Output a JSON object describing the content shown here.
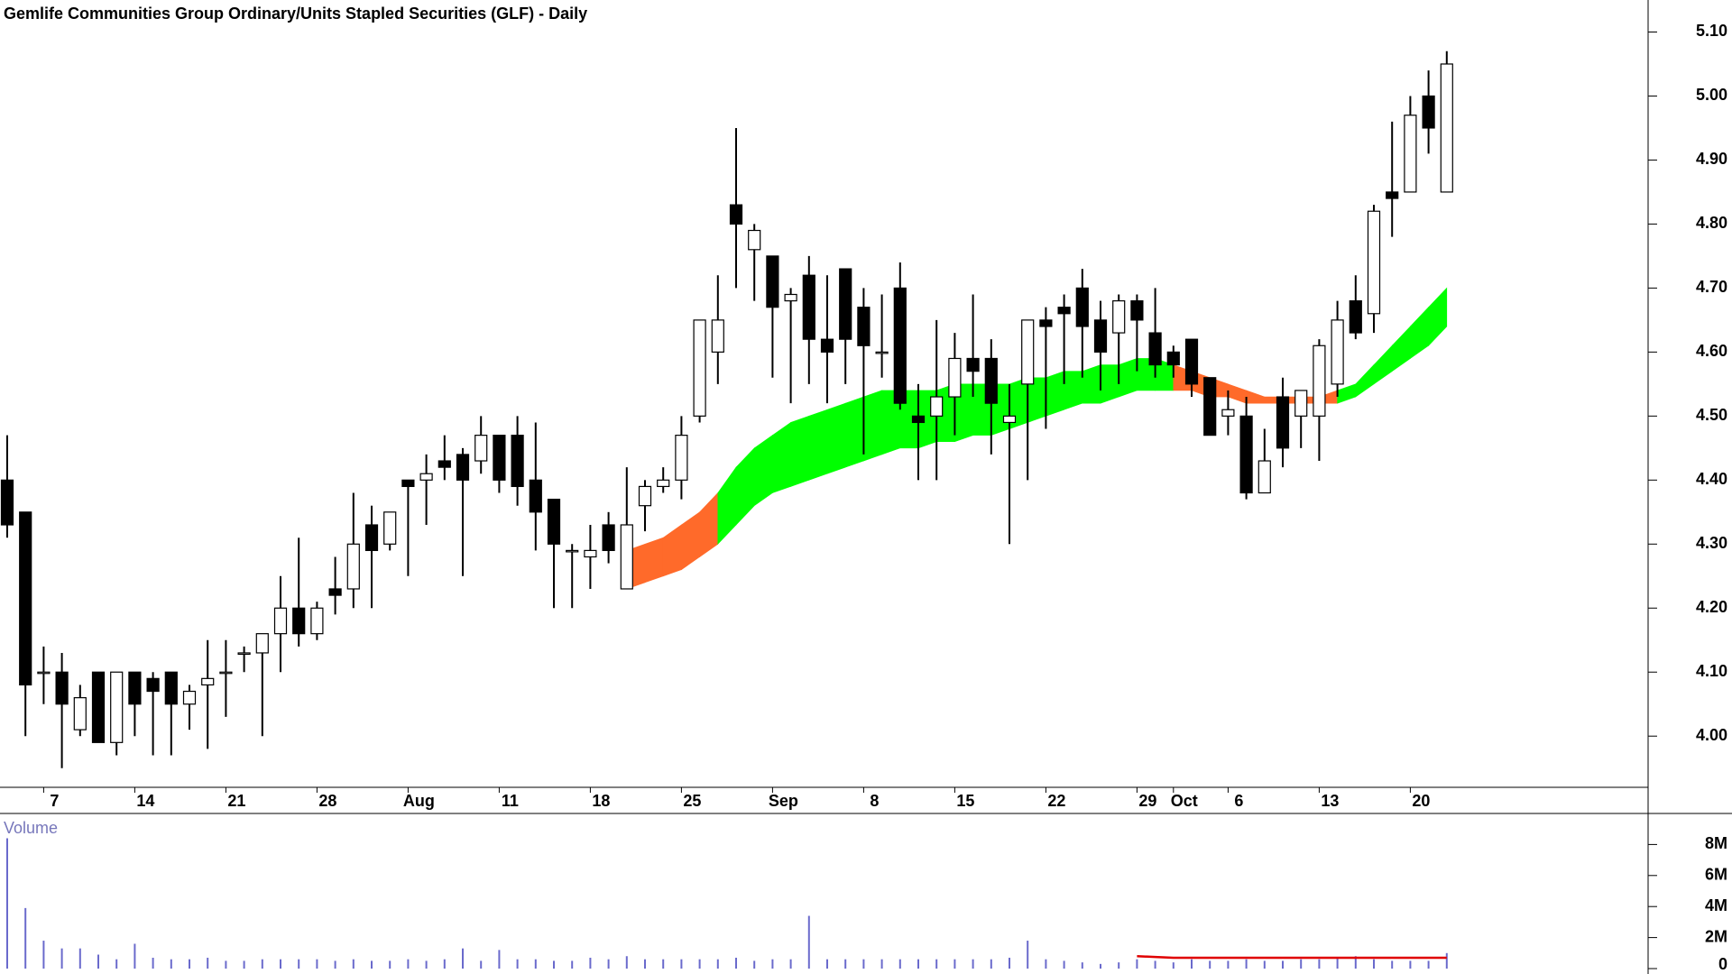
{
  "chart_data": {
    "type": "candlestick",
    "title": "Gemlife Communities Group Ordinary/Units Stapled Securities (GLF) - Daily",
    "categories": [
      null,
      null,
      "7",
      null,
      null,
      null,
      null,
      "14",
      null,
      null,
      null,
      null,
      "21",
      null,
      null,
      null,
      null,
      "28",
      null,
      null,
      null,
      null,
      "Aug",
      null,
      null,
      null,
      null,
      "11",
      null,
      null,
      null,
      null,
      "18",
      null,
      null,
      null,
      null,
      "25",
      null,
      null,
      null,
      null,
      "Sep",
      null,
      null,
      null,
      null,
      "8",
      null,
      null,
      null,
      null,
      "15",
      null,
      null,
      null,
      null,
      "22",
      null,
      null,
      null,
      null,
      "29",
      null,
      "Oct",
      null,
      null,
      "6",
      null,
      null,
      null,
      null,
      "13",
      null,
      null,
      null,
      null,
      "20",
      null,
      null
    ],
    "open": [
      4.4,
      4.35,
      4.1,
      4.1,
      4.01,
      4.1,
      3.99,
      4.1,
      4.09,
      4.1,
      4.05,
      4.08,
      4.1,
      4.13,
      4.13,
      4.16,
      4.2,
      4.16,
      4.23,
      4.23,
      4.33,
      4.3,
      4.4,
      4.4,
      4.43,
      4.44,
      4.43,
      4.47,
      4.47,
      4.4,
      4.37,
      4.29,
      4.28,
      4.33,
      4.23,
      4.36,
      4.39,
      4.4,
      4.5,
      4.6,
      4.83,
      4.76,
      4.75,
      4.68,
      4.72,
      4.62,
      4.73,
      4.67,
      4.6,
      4.7,
      4.5,
      4.5,
      4.53,
      4.59,
      4.59,
      4.49,
      4.55,
      4.65,
      4.67,
      4.7,
      4.65,
      4.63,
      4.68,
      4.63,
      4.6,
      4.62,
      4.56,
      4.5,
      4.5,
      4.38,
      4.53,
      4.5,
      4.5,
      4.55,
      4.68,
      4.66,
      4.85,
      4.85,
      5.0,
      4.85
    ],
    "high": [
      4.47,
      4.35,
      4.14,
      4.13,
      4.08,
      4.1,
      4.1,
      4.1,
      4.1,
      4.1,
      4.08,
      4.15,
      4.15,
      4.14,
      4.16,
      4.25,
      4.31,
      4.21,
      4.28,
      4.38,
      4.36,
      4.35,
      4.4,
      4.44,
      4.47,
      4.45,
      4.5,
      4.47,
      4.5,
      4.49,
      4.37,
      4.3,
      4.33,
      4.35,
      4.42,
      4.4,
      4.42,
      4.5,
      4.65,
      4.72,
      4.95,
      4.8,
      4.75,
      4.7,
      4.75,
      4.72,
      4.73,
      4.7,
      4.69,
      4.74,
      4.55,
      4.65,
      4.63,
      4.69,
      4.62,
      4.55,
      4.65,
      4.67,
      4.69,
      4.73,
      4.68,
      4.69,
      4.69,
      4.7,
      4.61,
      4.62,
      4.56,
      4.54,
      4.53,
      4.48,
      4.56,
      4.54,
      4.62,
      4.68,
      4.72,
      4.83,
      4.96,
      5.0,
      5.04,
      5.07
    ],
    "low": [
      4.31,
      4.0,
      4.05,
      3.95,
      4.0,
      3.99,
      3.97,
      4.0,
      3.97,
      3.97,
      4.01,
      3.98,
      4.03,
      4.1,
      4.0,
      4.1,
      4.14,
      4.15,
      4.19,
      4.2,
      4.2,
      4.29,
      4.25,
      4.33,
      4.4,
      4.25,
      4.41,
      4.38,
      4.36,
      4.29,
      4.2,
      4.2,
      4.23,
      4.27,
      4.23,
      4.32,
      4.38,
      4.37,
      4.49,
      4.55,
      4.7,
      4.68,
      4.56,
      4.52,
      4.55,
      4.52,
      4.55,
      4.44,
      4.56,
      4.51,
      4.4,
      4.4,
      4.47,
      4.53,
      4.44,
      4.3,
      4.4,
      4.48,
      4.55,
      4.56,
      4.54,
      4.55,
      4.57,
      4.56,
      4.56,
      4.53,
      4.47,
      4.47,
      4.37,
      4.38,
      4.42,
      4.45,
      4.43,
      4.53,
      4.62,
      4.63,
      4.78,
      4.85,
      4.91,
      4.85
    ],
    "close": [
      4.33,
      4.08,
      4.1,
      4.05,
      4.06,
      3.99,
      4.1,
      4.05,
      4.07,
      4.05,
      4.07,
      4.09,
      4.1,
      4.13,
      4.16,
      4.2,
      4.16,
      4.2,
      4.22,
      4.3,
      4.29,
      4.35,
      4.39,
      4.41,
      4.42,
      4.4,
      4.47,
      4.4,
      4.39,
      4.35,
      4.3,
      4.29,
      4.29,
      4.29,
      4.33,
      4.39,
      4.4,
      4.47,
      4.65,
      4.65,
      4.8,
      4.79,
      4.67,
      4.69,
      4.62,
      4.6,
      4.62,
      4.61,
      4.6,
      4.52,
      4.49,
      4.53,
      4.59,
      4.57,
      4.52,
      4.5,
      4.65,
      4.64,
      4.66,
      4.64,
      4.6,
      4.68,
      4.65,
      4.58,
      4.58,
      4.55,
      4.47,
      4.51,
      4.38,
      4.43,
      4.45,
      4.54,
      4.61,
      4.65,
      4.63,
      4.82,
      4.84,
      4.97,
      4.95,
      5.05
    ],
    "up_color": "#ffffff",
    "down_color": "#000000",
    "ylim": [
      3.92,
      5.15
    ],
    "yticks": [
      {
        "value": 4.0,
        "label": "4.00"
      },
      {
        "value": 4.1,
        "label": "4.10"
      },
      {
        "value": 4.2,
        "label": "4.20"
      },
      {
        "value": 4.3,
        "label": "4.30"
      },
      {
        "value": 4.4,
        "label": "4.40"
      },
      {
        "value": 4.5,
        "label": "4.50"
      },
      {
        "value": 4.6,
        "label": "4.60"
      },
      {
        "value": 4.7,
        "label": "4.70"
      },
      {
        "value": 4.8,
        "label": "4.80"
      },
      {
        "value": 4.9,
        "label": "4.90"
      },
      {
        "value": 5.0,
        "label": "5.00"
      },
      {
        "value": 5.1,
        "label": "5.10"
      }
    ],
    "band": {
      "upper": [
        null,
        null,
        null,
        null,
        null,
        null,
        null,
        null,
        null,
        null,
        null,
        null,
        null,
        null,
        null,
        null,
        null,
        null,
        null,
        null,
        null,
        null,
        null,
        null,
        null,
        null,
        null,
        null,
        null,
        null,
        null,
        null,
        null,
        null,
        4.29,
        4.3,
        4.31,
        4.33,
        4.35,
        4.38,
        4.42,
        4.45,
        4.47,
        4.49,
        4.5,
        4.51,
        4.52,
        4.53,
        4.54,
        4.54,
        4.54,
        4.54,
        4.55,
        4.55,
        4.55,
        4.55,
        4.56,
        4.56,
        4.57,
        4.57,
        4.58,
        4.58,
        4.59,
        4.59,
        4.58,
        4.57,
        4.56,
        4.55,
        4.54,
        4.53,
        4.53,
        4.53,
        4.53,
        4.54,
        4.55,
        4.58,
        4.61,
        4.64,
        4.67,
        4.7
      ],
      "lower": [
        null,
        null,
        null,
        null,
        null,
        null,
        null,
        null,
        null,
        null,
        null,
        null,
        null,
        null,
        null,
        null,
        null,
        null,
        null,
        null,
        null,
        null,
        null,
        null,
        null,
        null,
        null,
        null,
        null,
        null,
        null,
        null,
        null,
        null,
        4.23,
        4.24,
        4.25,
        4.26,
        4.28,
        4.3,
        4.33,
        4.36,
        4.38,
        4.39,
        4.4,
        4.41,
        4.42,
        4.43,
        4.44,
        4.45,
        4.45,
        4.46,
        4.46,
        4.47,
        4.47,
        4.48,
        4.49,
        4.5,
        4.51,
        4.52,
        4.52,
        4.53,
        4.54,
        4.54,
        4.54,
        4.54,
        4.53,
        4.53,
        4.52,
        4.52,
        4.52,
        4.52,
        4.52,
        4.52,
        4.53,
        4.55,
        4.57,
        4.59,
        4.61,
        4.64
      ],
      "colors": [
        null,
        null,
        null,
        null,
        null,
        null,
        null,
        null,
        null,
        null,
        null,
        null,
        null,
        null,
        null,
        null,
        null,
        null,
        null,
        null,
        null,
        null,
        null,
        null,
        null,
        null,
        null,
        null,
        null,
        null,
        null,
        null,
        null,
        null,
        "#ff6a2a",
        "#ff6a2a",
        "#ff6a2a",
        "#ff6a2a",
        "#ff6a2a",
        "#00ff00",
        "#00ff00",
        "#00ff00",
        "#00ff00",
        "#00ff00",
        "#00ff00",
        "#00ff00",
        "#00ff00",
        "#00ff00",
        "#00ff00",
        "#00ff00",
        "#00ff00",
        "#00ff00",
        "#00ff00",
        "#00ff00",
        "#00ff00",
        "#00ff00",
        "#00ff00",
        "#00ff00",
        "#00ff00",
        "#00ff00",
        "#00ff00",
        "#00ff00",
        "#00ff00",
        "#00ff00",
        "#ff6a2a",
        "#ff6a2a",
        "#ff6a2a",
        "#ff6a2a",
        "#ff6a2a",
        "#ff6a2a",
        "#ff6a2a",
        "#ff6a2a",
        "#ff6a2a",
        "#00ff00",
        "#00ff00",
        "#00ff00",
        "#00ff00",
        "#00ff00",
        "#00ff00",
        "#00ff00"
      ]
    },
    "volume": {
      "label": "Volume",
      "color": "#6a6acc",
      "values": [
        8.4,
        3.9,
        1.8,
        1.3,
        1.3,
        0.9,
        0.6,
        1.6,
        0.7,
        0.6,
        0.6,
        0.7,
        0.5,
        0.5,
        0.6,
        0.6,
        0.6,
        0.6,
        0.5,
        0.6,
        0.5,
        0.5,
        0.6,
        0.5,
        0.6,
        1.3,
        0.5,
        1.2,
        0.6,
        0.6,
        0.5,
        0.5,
        0.7,
        0.6,
        0.8,
        0.6,
        0.6,
        0.6,
        0.6,
        0.6,
        0.7,
        0.5,
        0.6,
        0.6,
        3.4,
        0.6,
        0.6,
        0.6,
        0.6,
        0.6,
        0.6,
        0.6,
        0.6,
        0.6,
        0.6,
        0.7,
        1.8,
        0.6,
        0.5,
        0.4,
        0.3,
        0.4,
        0.6,
        0.5,
        0.4,
        0.6,
        0.5,
        0.5,
        0.6,
        0.5,
        0.5,
        0.6,
        0.6,
        0.7,
        0.8,
        0.6,
        0.5,
        0.5,
        0.5,
        1.0
      ],
      "ma": {
        "color": "#e00000",
        "values": [
          null,
          null,
          null,
          null,
          null,
          null,
          null,
          null,
          null,
          null,
          null,
          null,
          null,
          null,
          null,
          null,
          null,
          null,
          null,
          null,
          null,
          null,
          null,
          null,
          null,
          null,
          null,
          null,
          null,
          null,
          null,
          null,
          null,
          null,
          null,
          null,
          null,
          null,
          null,
          null,
          null,
          null,
          null,
          null,
          null,
          null,
          null,
          null,
          null,
          null,
          null,
          null,
          null,
          null,
          null,
          null,
          null,
          null,
          null,
          null,
          null,
          null,
          0.8,
          0.75,
          0.7,
          0.7,
          0.7,
          0.7,
          0.7,
          0.7,
          0.7,
          0.7,
          0.7,
          0.7,
          0.7,
          0.7,
          0.7,
          0.7,
          0.7,
          0.7
        ]
      },
      "ylim": [
        0,
        10
      ],
      "yticks": [
        0,
        {
          "value": 2,
          "label": "2M"
        },
        {
          "value": 4,
          "label": "4M"
        },
        {
          "value": 6,
          "label": "6M"
        },
        {
          "value": 8,
          "label": "8M"
        }
      ]
    }
  }
}
